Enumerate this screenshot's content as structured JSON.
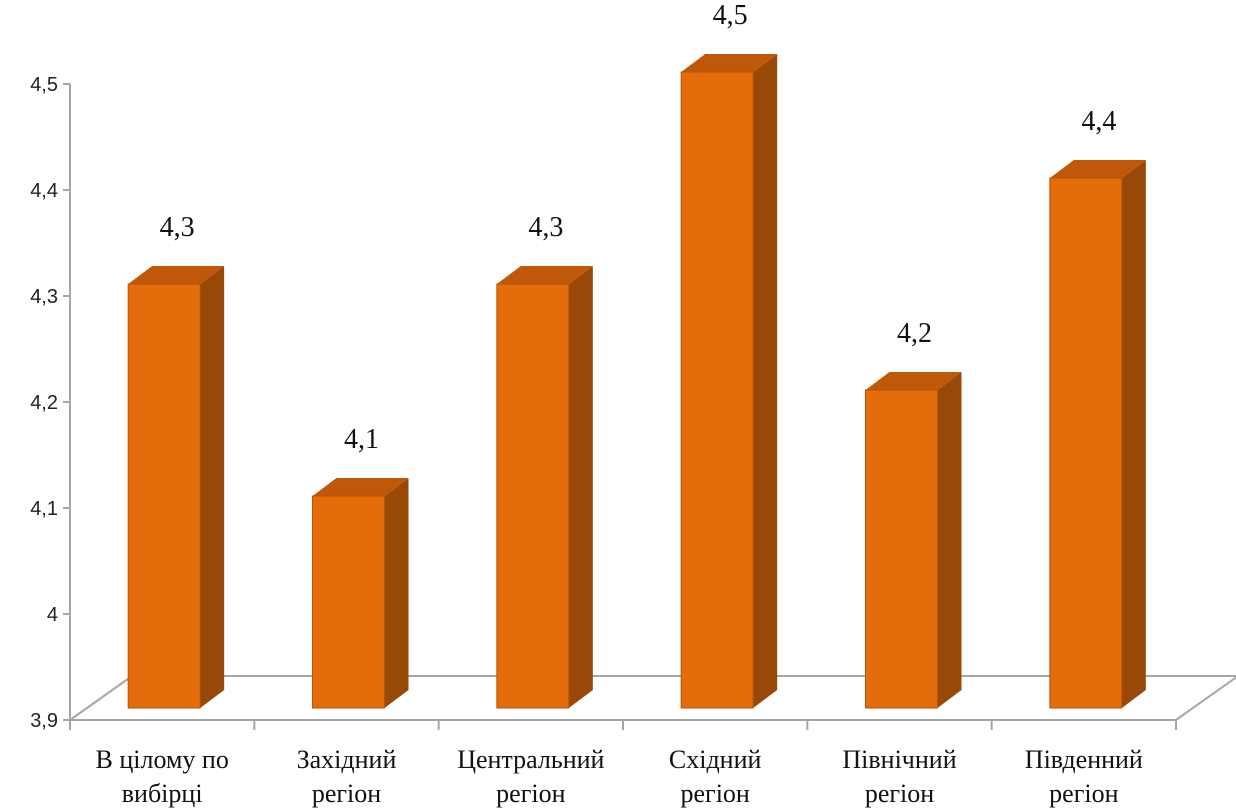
{
  "chart_data": {
    "type": "bar",
    "style": "3d-column",
    "categories": [
      [
        "В цілому по",
        "вибірці"
      ],
      [
        "Західний",
        "регіон"
      ],
      [
        "Центральний",
        "регіон"
      ],
      [
        "Східний",
        "регіон"
      ],
      [
        "Північний",
        "регіон"
      ],
      [
        "Південний",
        "регіон"
      ]
    ],
    "values": [
      4.3,
      4.1,
      4.3,
      4.5,
      4.2,
      4.4
    ],
    "value_labels": [
      "4,3",
      "4,1",
      "4,3",
      "4,5",
      "4,2",
      "4,4"
    ],
    "y_ticks": [
      3.9,
      4.0,
      4.1,
      4.2,
      4.3,
      4.4,
      4.5
    ],
    "y_tick_labels": [
      "3,9",
      "4",
      "4,1",
      "4,2",
      "4,3",
      "4,4",
      "4,5"
    ],
    "ylim": [
      3.9,
      4.5
    ],
    "title": "",
    "xlabel": "",
    "ylabel": "",
    "grid": false,
    "legend": "none",
    "colors": {
      "front": "#E46C0A",
      "top": "#C0580A",
      "side": "#984807",
      "outline": "#B3550A",
      "axis": "#A6A6A6"
    }
  }
}
